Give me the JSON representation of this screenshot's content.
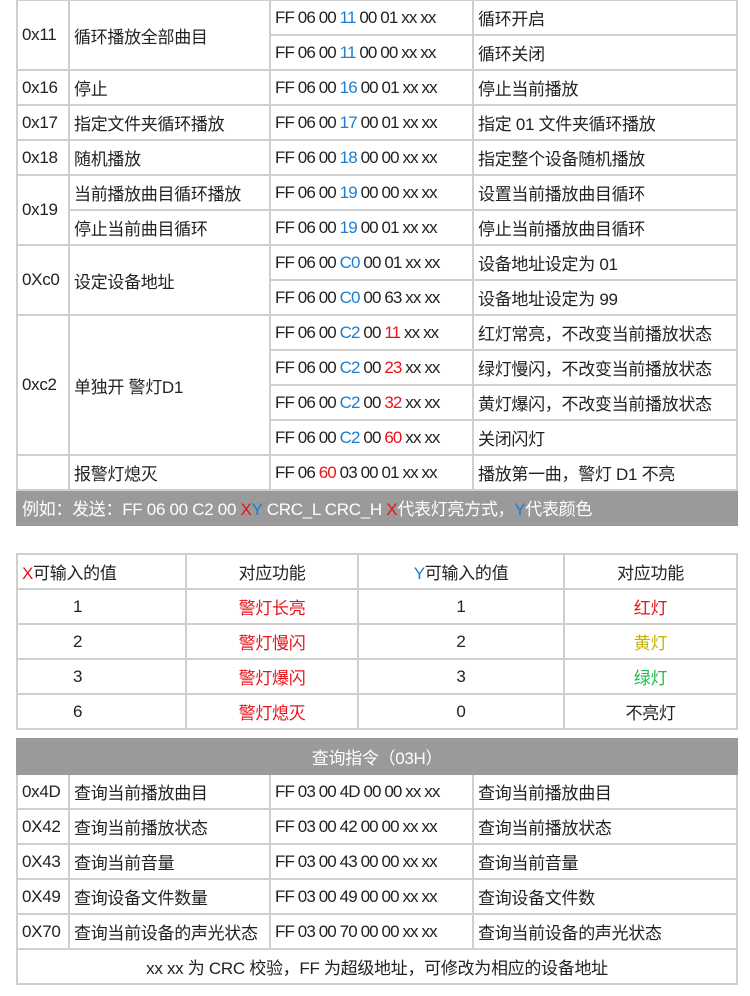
{
  "colors": {
    "blue": "#1a7fd4",
    "red": "#e8141b",
    "yellow": "#c9b300",
    "green": "#1dbf4a",
    "banner": "#9a9a9a"
  },
  "control_groups": [
    {
      "code": "0x11",
      "name": "循环播放全部曲目",
      "rows": [
        {
          "cmd": [
            {
              "t": "FF 06 00 "
            },
            {
              "t": "11",
              "c": "blue"
            },
            {
              "t": " 00 01 xx xx"
            }
          ],
          "desc": "循环开启"
        },
        {
          "cmd": [
            {
              "t": "FF 06 00 "
            },
            {
              "t": "11",
              "c": "blue"
            },
            {
              "t": " 00 00 xx xx"
            }
          ],
          "desc": "循环关闭"
        }
      ]
    },
    {
      "code": "0x16",
      "name": "停止",
      "rows": [
        {
          "cmd": [
            {
              "t": "FF 06 00 "
            },
            {
              "t": "16",
              "c": "blue"
            },
            {
              "t": " 00 01 xx xx"
            }
          ],
          "desc": "停止当前播放"
        }
      ]
    },
    {
      "code": "0x17",
      "name": "指定文件夹循环播放",
      "rows": [
        {
          "cmd": [
            {
              "t": "FF 06 00 "
            },
            {
              "t": "17",
              "c": "blue"
            },
            {
              "t": " 00 01 xx xx"
            }
          ],
          "desc": "指定 01 文件夹循环播放"
        }
      ]
    },
    {
      "code": "0x18",
      "name": "随机播放",
      "rows": [
        {
          "cmd": [
            {
              "t": "FF 06 00 "
            },
            {
              "t": "18",
              "c": "blue"
            },
            {
              "t": " 00 00 xx xx"
            }
          ],
          "desc": "指定整个设备随机播放"
        }
      ]
    },
    {
      "code": "0x19",
      "rows": [
        {
          "name": "当前播放曲目循环播放",
          "cmd": [
            {
              "t": "FF 06 00 "
            },
            {
              "t": "19",
              "c": "blue"
            },
            {
              "t": " 00 00 xx xx"
            }
          ],
          "desc": "设置当前播放曲目循环"
        },
        {
          "name": "停止当前曲目循环",
          "cmd": [
            {
              "t": "FF 06 00 "
            },
            {
              "t": "19",
              "c": "blue"
            },
            {
              "t": " 00 01 xx xx"
            }
          ],
          "desc": "停止当前播放曲目循环"
        }
      ]
    },
    {
      "code": "0Xc0",
      "name": "设定设备地址",
      "rows": [
        {
          "cmd": [
            {
              "t": "FF 06 00 "
            },
            {
              "t": "C0",
              "c": "blue"
            },
            {
              "t": " 00 01 xx xx"
            }
          ],
          "desc": "设备地址设定为 01"
        },
        {
          "cmd": [
            {
              "t": "FF 06 00 "
            },
            {
              "t": "C0",
              "c": "blue"
            },
            {
              "t": " 00 63 xx xx"
            }
          ],
          "desc": "设备地址设定为 99"
        }
      ]
    },
    {
      "code": "0xc2",
      "name": "单独开 警灯D1",
      "rows": [
        {
          "cmd": [
            {
              "t": "FF 06 00 "
            },
            {
              "t": "C2",
              "c": "blue"
            },
            {
              "t": " 00 "
            },
            {
              "t": "11",
              "c": "red"
            },
            {
              "t": " xx xx"
            }
          ],
          "desc": "红灯常亮，不改变当前播放状态"
        },
        {
          "cmd": [
            {
              "t": "FF 06 00 "
            },
            {
              "t": "C2",
              "c": "blue"
            },
            {
              "t": " 00 "
            },
            {
              "t": "23",
              "c": "red"
            },
            {
              "t": " xx xx"
            }
          ],
          "desc": "绿灯慢闪，不改变当前播放状态"
        },
        {
          "cmd": [
            {
              "t": "FF 06 00 "
            },
            {
              "t": "C2",
              "c": "blue"
            },
            {
              "t": " 00 "
            },
            {
              "t": "32",
              "c": "red"
            },
            {
              "t": " xx xx"
            }
          ],
          "desc": "黄灯爆闪，不改变当前播放状态"
        },
        {
          "cmd": [
            {
              "t": "FF 06 00 "
            },
            {
              "t": "C2",
              "c": "blue"
            },
            {
              "t": " 00 "
            },
            {
              "t": "60",
              "c": "red"
            },
            {
              "t": " xx xx"
            }
          ],
          "desc": "关闭闪灯"
        }
      ]
    },
    {
      "code": "",
      "name": "报警灯熄灭",
      "rows": [
        {
          "cmd": [
            {
              "t": "FF 06 "
            },
            {
              "t": "60",
              "c": "red"
            },
            {
              "t": " 03 00 01 xx xx"
            }
          ],
          "desc": "播放第一曲，警灯 D1 不亮"
        }
      ]
    }
  ],
  "example": [
    {
      "t": "例如：发送：FF 06 00 C2 00 "
    },
    {
      "t": "X",
      "c": "red"
    },
    {
      "t": "Y",
      "c": "blue"
    },
    {
      "t": " CRC_L CRC_H "
    },
    {
      "t": "X",
      "c": "red"
    },
    {
      "t": "代表灯亮方式，"
    },
    {
      "t": "Y",
      "c": "blue"
    },
    {
      "t": "代表颜色"
    }
  ],
  "xy_table": {
    "headers": [
      [
        {
          "t": "X",
          "c": "red"
        },
        {
          "t": "可输入的值"
        }
      ],
      [
        {
          "t": "对应功能"
        }
      ],
      [
        {
          "t": "Y",
          "c": "blue"
        },
        {
          "t": "可输入的值"
        }
      ],
      [
        {
          "t": "对应功能"
        }
      ]
    ],
    "rows": [
      {
        "x": "1",
        "x_func": "警灯长亮",
        "y": "1",
        "y_func": "红灯",
        "y_color": "red"
      },
      {
        "x": "2",
        "x_func": "警灯慢闪",
        "y": "2",
        "y_func": "黄灯",
        "y_color": "yellow"
      },
      {
        "x": "3",
        "x_func": "警灯爆闪",
        "y": "3",
        "y_func": "绿灯",
        "y_color": "green"
      },
      {
        "x": "6",
        "x_func": "警灯熄灭",
        "y": "0",
        "y_func": "不亮灯",
        "y_color": ""
      }
    ]
  },
  "query_title": "查询指令（03H）",
  "query_rows": [
    {
      "code": "0x4D",
      "name": "查询当前播放曲目",
      "cmd": "FF 03 00 4D 00 00 xx xx",
      "desc": "查询当前播放曲目"
    },
    {
      "code": "0X42",
      "name": "查询当前播放状态",
      "cmd": "FF 03 00 42 00 00 xx xx",
      "desc": "查询当前播放状态"
    },
    {
      "code": "0X43",
      "name": "查询当前音量",
      "cmd": "FF 03 00 43 00 00 xx xx",
      "desc": "查询当前音量"
    },
    {
      "code": "0X49",
      "name": "查询设备文件数量",
      "cmd": "FF 03 00 49 00 00 xx xx",
      "desc": "查询设备文件数"
    },
    {
      "code": "0X70",
      "name": "查询当前设备的声光状态",
      "cmd": "FF 03 00 70 00 00 xx xx",
      "desc": "查询当前设备的声光状态"
    }
  ],
  "footer": "xx xx 为 CRC 校验，FF 为超级地址，可修改为相应的设备地址"
}
